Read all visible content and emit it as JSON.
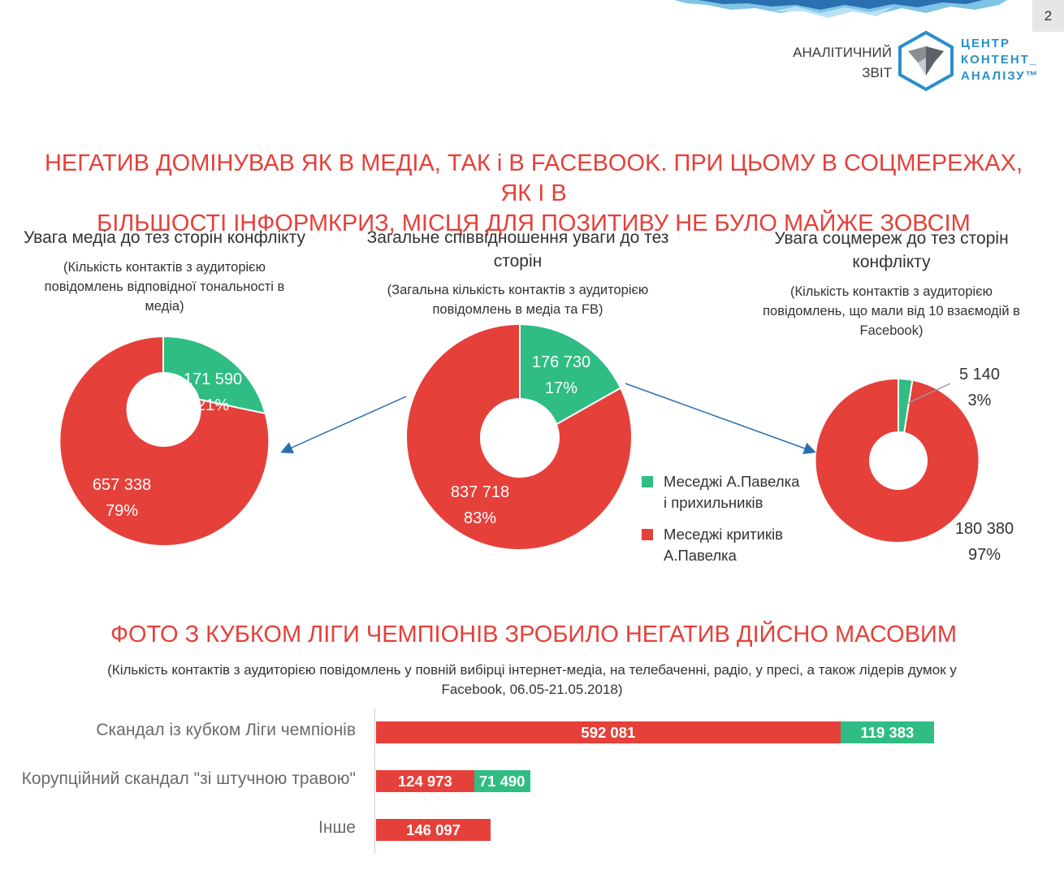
{
  "page_number": "2",
  "header": {
    "report_label_line1": "АНАЛІТИЧНИЙ",
    "report_label_line2": "ЗВІТ",
    "brand_line1": "ЦЕНТР",
    "brand_line2": "КОНТЕНТ_",
    "brand_line3": "АНАЛІЗУ™"
  },
  "headline1_line1": "НЕГАТИВ ДОМІНУВАВ ЯК  В МЕДІА, ТАК і В FACEBOOK. ПРИ ЦЬОМУ В СОЦМЕРЕЖАХ, ЯК І В",
  "headline1_line2": "БІЛЬШОСТІ ІНФОРМКРИЗ, МІСЦЯ ДЛЯ ПОЗИТИВУ НЕ БУЛО МАЙЖЕ ЗОВСІМ",
  "colors": {
    "positive": "#2fbd84",
    "negative": "#e5403a",
    "headline": "#e5403a",
    "arrow": "#2a6fb0"
  },
  "donuts": {
    "media": {
      "title": "Увага медіа до тез сторін конфлікту",
      "subtitle": "(Кількість контактів з аудиторією повідомлень відповідної тональності в медіа)",
      "positive_value": "171 590",
      "positive_pct": "21%",
      "negative_value": "657 338",
      "negative_pct": "79%"
    },
    "total": {
      "title": "Загальне співвідношення уваги до тез сторін",
      "subtitle": "(Загальна кількість контактів з аудиторією повідомлень в медіа та FB)",
      "positive_value": "176 730",
      "positive_pct": "17%",
      "negative_value": "837 718",
      "negative_pct": "83%"
    },
    "social": {
      "title": "Увага соцмереж до тез сторін конфлікту",
      "subtitle": "(Кількість контактів з аудиторією повідомлень, що мали від 10 взаємодій в Facebook)",
      "positive_value": "5 140",
      "positive_pct": "3%",
      "negative_value": "180 380",
      "negative_pct": "97%"
    }
  },
  "legend": {
    "positive_line1": "Меседжі А.Павелка",
    "positive_line2": "і прихильників",
    "negative_line1": "Меседжі критиків",
    "negative_line2": "А.Павелка"
  },
  "headline2": "ФОТО З КУБКОМ ЛІГИ ЧЕМПІОНІВ ЗРОБИЛО НЕГАТИВ ДІЙСНО МАСОВИМ",
  "bars_subtitle_line1": "(Кількість контактів з аудиторією повідомлень у повній вибірці  інтернет-медіа, на телебаченні, радіо, у пресі, а також лідерів думок у",
  "bars_subtitle_line2": "Facebook, 06.05-21.05.2018)",
  "chart_data": {
    "type": "bar",
    "orientation": "horizontal",
    "stacked": true,
    "categories": [
      "Скандал із кубком Ліги чемпіонів",
      "Корупційний скандал \"зі штучною травою\"",
      "Інше"
    ],
    "series": [
      {
        "color": "#e5403a",
        "values": [
          592081,
          124973,
          146097
        ],
        "labels": [
          "592 081",
          "124 973",
          "146 097"
        ]
      },
      {
        "color": "#2fbd84",
        "values": [
          119383,
          71490,
          0
        ],
        "labels": [
          "119 383",
          "71 490",
          ""
        ]
      }
    ]
  }
}
